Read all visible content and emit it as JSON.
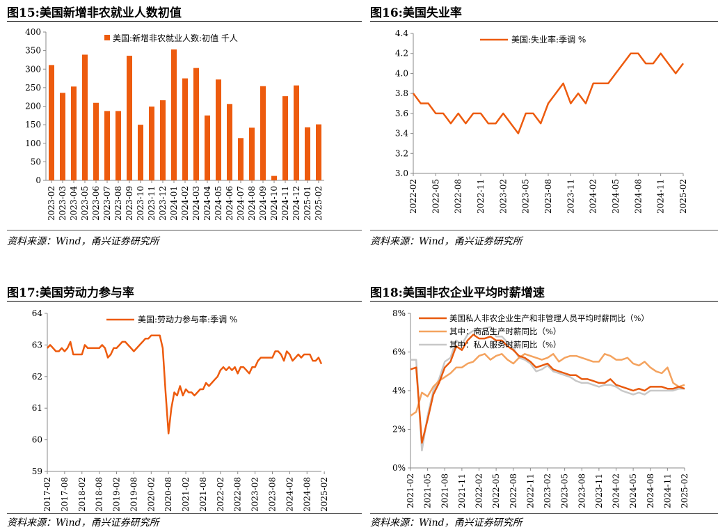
{
  "source_text": "资料来源：Wind，甬兴证券研究所",
  "chart_data": [
    {
      "id": "c15",
      "title": "图15:美国新增非农就业人数初值",
      "type": "bar",
      "legend": "美国:新增非农就业人数:初值 千人",
      "legend_position": "top-center",
      "color": "#ED5B0E",
      "ylim": [
        0,
        400
      ],
      "yticks": [
        "0",
        "50",
        "100",
        "150",
        "200",
        "250",
        "300",
        "350",
        "400"
      ],
      "categories": [
        "2023-02",
        "2023-03",
        "2023-04",
        "2023-05",
        "2023-06",
        "2023-07",
        "2023-08",
        "2023-09",
        "2023-10",
        "2023-11",
        "2023-12",
        "2024-01",
        "2024-02",
        "2024-03",
        "2024-04",
        "2024-05",
        "2024-06",
        "2024-07",
        "2024-08",
        "2024-09",
        "2024-10",
        "2024-11",
        "2024-12",
        "2025-01",
        "2025-02"
      ],
      "values": [
        311,
        236,
        253,
        339,
        209,
        187,
        187,
        336,
        150,
        199,
        216,
        353,
        275,
        303,
        175,
        272,
        206,
        114,
        142,
        254,
        12,
        227,
        256,
        143,
        151
      ],
      "grid": false
    },
    {
      "id": "c16",
      "title": "图16:美国失业率",
      "type": "line",
      "legend": "美国:失业率:季调 %",
      "legend_position": "top-center",
      "color": "#ED5B0E",
      "ylim": [
        3.0,
        4.4
      ],
      "yticks": [
        "3.0",
        "3.2",
        "3.4",
        "3.6",
        "3.8",
        "4.0",
        "4.2",
        "4.4"
      ],
      "xticks": [
        "2022-02",
        "2022-05",
        "2022-08",
        "2022-11",
        "2023-02",
        "2023-05",
        "2023-08",
        "2023-11",
        "2024-02",
        "2024-05",
        "2024-08",
        "2024-11",
        "2025-02"
      ],
      "series": [
        {
          "values": [
            3.8,
            3.7,
            3.7,
            3.6,
            3.6,
            3.5,
            3.6,
            3.5,
            3.6,
            3.6,
            3.5,
            3.5,
            3.6,
            3.5,
            3.4,
            3.6,
            3.6,
            3.5,
            3.7,
            3.8,
            3.9,
            3.7,
            3.8,
            3.7,
            3.9,
            3.9,
            3.9,
            4.0,
            4.1,
            4.2,
            4.2,
            4.1,
            4.1,
            4.2,
            4.1,
            4.0,
            4.1
          ]
        }
      ],
      "grid": false
    },
    {
      "id": "c17",
      "title": "图17:美国劳动力参与率",
      "type": "line",
      "legend": "美国:劳动力参与率:季调 %",
      "legend_position": "top-center",
      "color": "#ED5B0E",
      "ylim": [
        59,
        64
      ],
      "yticks": [
        "59",
        "60",
        "61",
        "62",
        "63",
        "64"
      ],
      "xticks": [
        "2017-02",
        "2017-08",
        "2018-02",
        "2018-08",
        "2019-02",
        "2019-08",
        "2020-02",
        "2020-08",
        "2021-02",
        "2021-08",
        "2022-02",
        "2022-08",
        "2023-02",
        "2023-08",
        "2024-02",
        "2024-08",
        "2025-02"
      ],
      "series": [
        {
          "values": [
            62.9,
            63.0,
            62.9,
            62.8,
            62.8,
            62.9,
            62.8,
            62.9,
            63.1,
            62.7,
            62.7,
            62.7,
            62.7,
            63.0,
            62.9,
            62.9,
            62.9,
            62.9,
            62.9,
            63.0,
            62.9,
            62.6,
            62.7,
            62.9,
            62.9,
            63.0,
            63.1,
            63.1,
            63.0,
            62.9,
            62.8,
            62.9,
            63.0,
            63.1,
            63.2,
            63.2,
            63.3,
            63.3,
            63.3,
            63.3,
            62.9,
            61.5,
            60.2,
            61.0,
            61.5,
            61.4,
            61.7,
            61.4,
            61.6,
            61.5,
            61.5,
            61.4,
            61.5,
            61.6,
            61.6,
            61.8,
            61.7,
            61.8,
            61.9,
            62.0,
            62.2,
            62.3,
            62.2,
            62.3,
            62.2,
            62.3,
            62.1,
            62.3,
            62.3,
            62.2,
            62.1,
            62.3,
            62.3,
            62.5,
            62.6,
            62.6,
            62.6,
            62.6,
            62.6,
            62.8,
            62.8,
            62.7,
            62.5,
            62.8,
            62.7,
            62.5,
            62.6,
            62.7,
            62.6,
            62.7,
            62.7,
            62.7,
            62.5,
            62.5,
            62.6,
            62.4
          ]
        }
      ],
      "grid": false
    },
    {
      "id": "c18",
      "title": "图18:美国非农企业平均时薪增速",
      "type": "line",
      "legend_position": "top-right",
      "ylim": [
        0,
        8
      ],
      "yticks": [
        "0%",
        "2%",
        "4%",
        "6%",
        "8%"
      ],
      "xticks": [
        "2021-02",
        "2021-05",
        "2021-08",
        "2021-11",
        "2022-02",
        "2022-05",
        "2022-08",
        "2022-11",
        "2023-02",
        "2023-05",
        "2023-08",
        "2023-11",
        "2024-02",
        "2024-05",
        "2024-08",
        "2024-11",
        "2025-02"
      ],
      "series": [
        {
          "name": "美国私人非农企业生产和非管理人员平均时薪同比（%）",
          "color": "#E85A0E",
          "values": [
            5.1,
            5.2,
            1.3,
            2.5,
            3.8,
            4.4,
            5.2,
            5.5,
            6.3,
            6.1,
            6.6,
            6.9,
            6.7,
            6.7,
            6.8,
            6.6,
            6.6,
            6.3,
            6.1,
            5.8,
            5.7,
            5.5,
            5.2,
            5.3,
            5.4,
            5.1,
            5.0,
            4.9,
            4.8,
            4.8,
            4.6,
            4.6,
            4.5,
            4.4,
            4.4,
            4.6,
            4.3,
            4.2,
            4.1,
            4.0,
            4.1,
            4.0,
            4.2,
            4.2,
            4.2,
            4.1,
            4.1,
            4.2,
            4.1
          ]
        },
        {
          "name": "其中：商品生产时薪同比（%）",
          "color": "#F4A35F",
          "values": [
            2.7,
            2.9,
            3.9,
            3.7,
            4.2,
            4.5,
            4.7,
            4.9,
            5.2,
            5.2,
            5.4,
            5.5,
            5.8,
            5.9,
            5.6,
            5.8,
            5.9,
            5.6,
            5.4,
            5.7,
            5.9,
            5.8,
            5.7,
            5.6,
            5.7,
            5.9,
            5.5,
            5.7,
            5.8,
            5.8,
            5.7,
            5.6,
            5.5,
            5.5,
            5.9,
            5.8,
            5.6,
            5.6,
            5.7,
            5.4,
            5.3,
            5.5,
            5.2,
            5.0,
            4.9,
            5.2,
            4.4,
            4.2,
            4.3
          ]
        },
        {
          "name": "其中：私人服务时薪同比（%）",
          "color": "#C8C8C8",
          "values": [
            5.6,
            5.6,
            0.9,
            2.7,
            4.0,
            4.6,
            5.5,
            5.7,
            6.6,
            6.4,
            6.9,
            7.1,
            7.2,
            7.2,
            7.3,
            6.8,
            6.8,
            6.5,
            6.2,
            5.7,
            5.6,
            5.4,
            5.0,
            5.1,
            5.3,
            5.0,
            4.9,
            4.8,
            4.7,
            4.5,
            4.4,
            4.4,
            4.3,
            4.2,
            4.3,
            4.3,
            4.2,
            4.0,
            3.9,
            3.8,
            3.9,
            3.8,
            4.0,
            4.0,
            4.0,
            4.0,
            4.0,
            4.1,
            4.1
          ]
        }
      ],
      "grid": false
    }
  ]
}
